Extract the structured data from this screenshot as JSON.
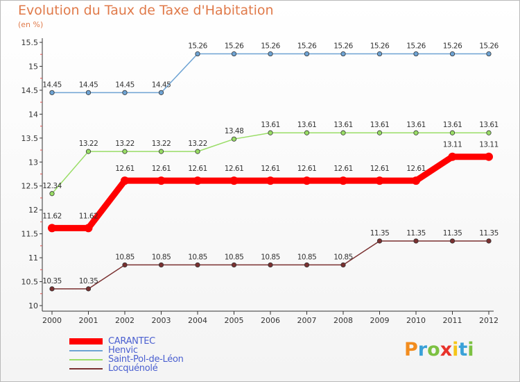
{
  "title": "Evolution du Taux de Taxe d'Habitation",
  "subtitle": "(en %)",
  "logo": {
    "text": "Proxiti",
    "colors": [
      "#f28c1e",
      "#3aa1d8",
      "#7cc142",
      "#e8322a",
      "#f5c518",
      "#3aa1d8",
      "#7cc142"
    ]
  },
  "chart_data": {
    "type": "line",
    "categories": [
      "2000",
      "2001",
      "2002",
      "2003",
      "2004",
      "2005",
      "2006",
      "2007",
      "2008",
      "2009",
      "2010",
      "2011",
      "2012"
    ],
    "ylim": [
      10,
      15.5
    ],
    "yticks": [
      "10",
      "10.5",
      "11",
      "11.5",
      "12",
      "12.5",
      "13",
      "13.5",
      "14",
      "14.5",
      "15",
      "15.5"
    ],
    "series": [
      {
        "name": "CARANTEC",
        "color": "#ff0000",
        "width": 9,
        "marker": 6,
        "values": [
          11.62,
          11.62,
          12.61,
          12.61,
          12.61,
          12.61,
          12.61,
          12.61,
          12.61,
          12.61,
          12.61,
          13.11,
          13.11
        ],
        "labels": [
          "11.62",
          "11.62",
          "12.61",
          "12.61",
          "12.61",
          "12.61",
          "12.61",
          "12.61",
          "12.61",
          "12.61",
          "12.61",
          "13.11",
          "13.11"
        ]
      },
      {
        "name": "Henvic",
        "color": "#6ea3d3",
        "width": 1.5,
        "marker": 3.2,
        "values": [
          14.45,
          14.45,
          14.45,
          14.45,
          15.26,
          15.26,
          15.26,
          15.26,
          15.26,
          15.26,
          15.26,
          15.26,
          15.26
        ],
        "labels": [
          "14.45",
          "14.45",
          "14.45",
          "14.45",
          "15.26",
          "15.26",
          "15.26",
          "15.26",
          "15.26",
          "15.26",
          "15.26",
          "15.26",
          "15.26"
        ]
      },
      {
        "name": "Saint-Pol-de-Léon",
        "color": "#99dd66",
        "width": 1.5,
        "marker": 3.2,
        "values": [
          12.34,
          13.22,
          13.22,
          13.22,
          13.22,
          13.48,
          13.61,
          13.61,
          13.61,
          13.61,
          13.61,
          13.61,
          13.61
        ],
        "labels": [
          "12.34",
          "13.22",
          "13.22",
          "13.22",
          "13.22",
          "13.48",
          "13.61",
          "13.61",
          "13.61",
          "13.61",
          "13.61",
          "13.61",
          "13.61"
        ]
      },
      {
        "name": "Locquénolé",
        "color": "#7a3030",
        "width": 1.5,
        "marker": 3.2,
        "values": [
          10.35,
          10.35,
          10.85,
          10.85,
          10.85,
          10.85,
          10.85,
          10.85,
          10.85,
          11.35,
          11.35,
          11.35,
          11.35
        ],
        "labels": [
          "10.35",
          "10.35",
          "10.85",
          "10.85",
          "10.85",
          "10.85",
          "10.85",
          "10.85",
          "10.85",
          "11.35",
          "11.35",
          "11.35",
          "11.35"
        ]
      }
    ],
    "legend_position": "bottom-left"
  }
}
